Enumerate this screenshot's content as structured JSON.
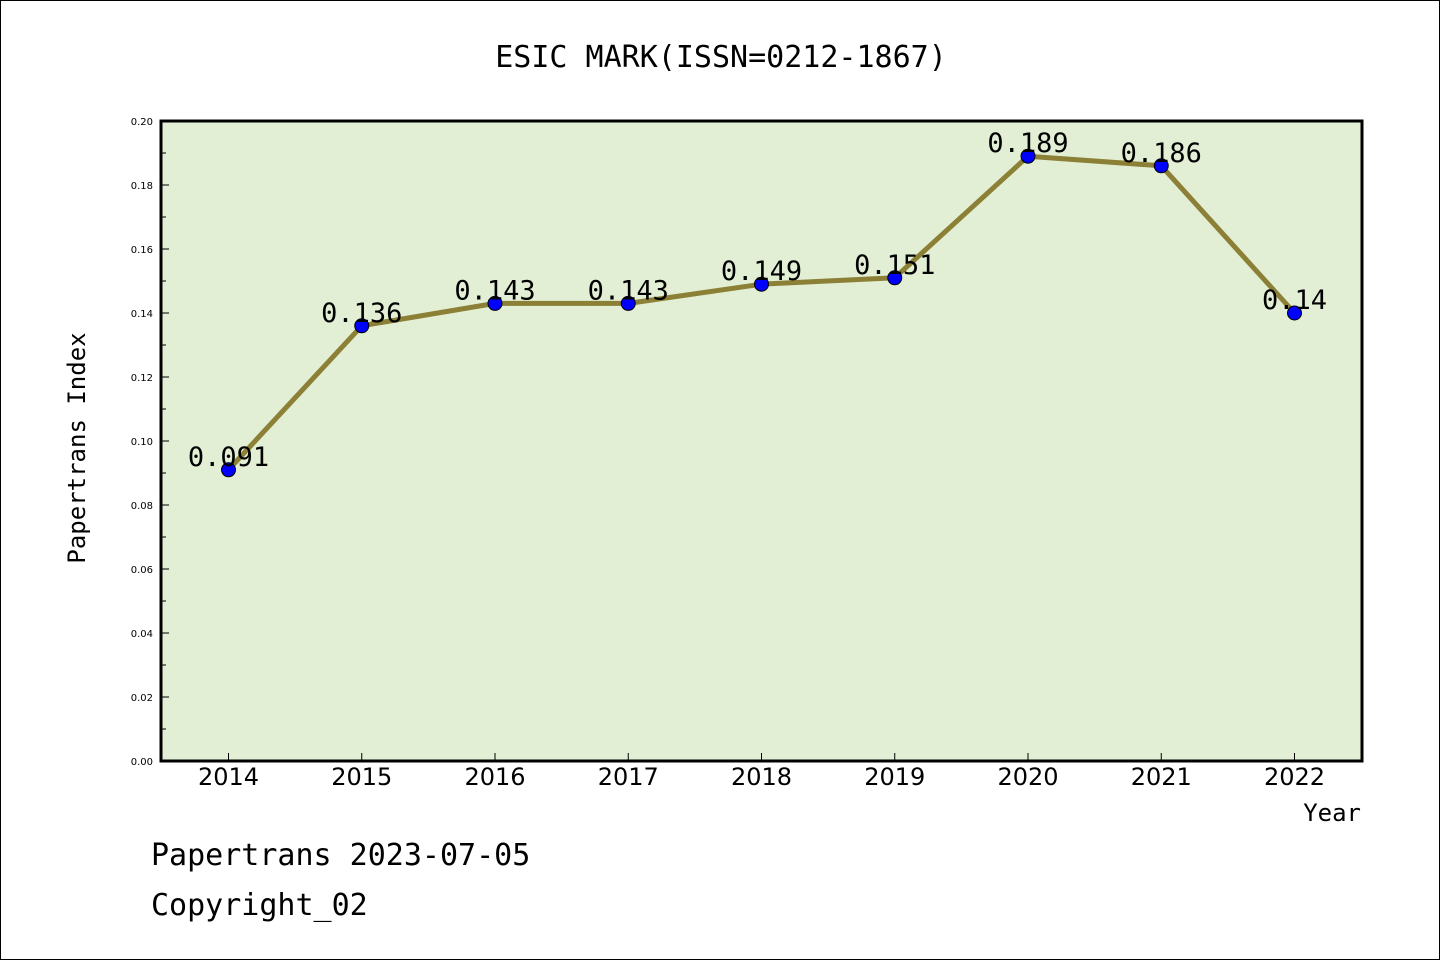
{
  "chart_data": {
    "type": "line",
    "title": "ESIC MARK(ISSN=0212-1867)",
    "xlabel": "Year",
    "ylabel": "Papertrans Index",
    "x": [
      "2014",
      "2015",
      "2016",
      "2017",
      "2018",
      "2019",
      "2020",
      "2021",
      "2022"
    ],
    "series": [
      {
        "values": [
          0.091,
          0.136,
          0.143,
          0.143,
          0.149,
          0.151,
          0.189,
          0.186,
          0.14
        ]
      }
    ],
    "data_labels": [
      "0.091",
      "0.136",
      "0.143",
      "0.143",
      "0.149",
      "0.151",
      "0.189",
      "0.186",
      "0.14"
    ],
    "ylim": [
      0,
      0.2
    ],
    "yticks": [
      "0.00",
      "0.02",
      "0.04",
      "0.06",
      "0.08",
      "0.10",
      "0.12",
      "0.14",
      "0.16",
      "0.18",
      "0.20"
    ],
    "grid": false,
    "colors": {
      "plot_background": "#e2efd5",
      "line": "#8b8035",
      "marker": "#0000ff"
    }
  },
  "footer": {
    "line1": "Papertrans 2023-07-05",
    "line2": "Copyright_02"
  }
}
